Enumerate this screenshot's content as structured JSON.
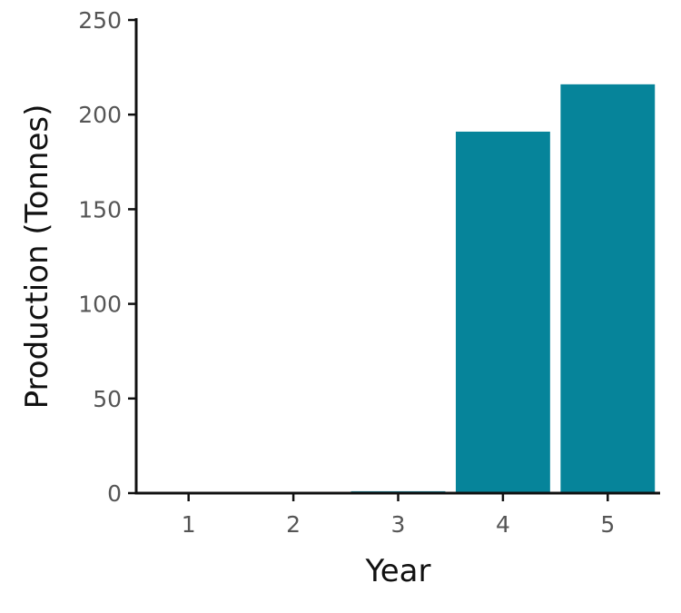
{
  "chart_data": {
    "type": "bar",
    "categories": [
      "1",
      "2",
      "3",
      "4",
      "5"
    ],
    "values": [
      0,
      0,
      1,
      191,
      216
    ],
    "xlabel": "Year",
    "ylabel": "Production (Tonnes)",
    "ylim": [
      0,
      250
    ],
    "yticks": [
      "0",
      "50",
      "100",
      "150",
      "200",
      "250"
    ],
    "grid": false,
    "legend": "none",
    "bar_color": "#06849A"
  }
}
